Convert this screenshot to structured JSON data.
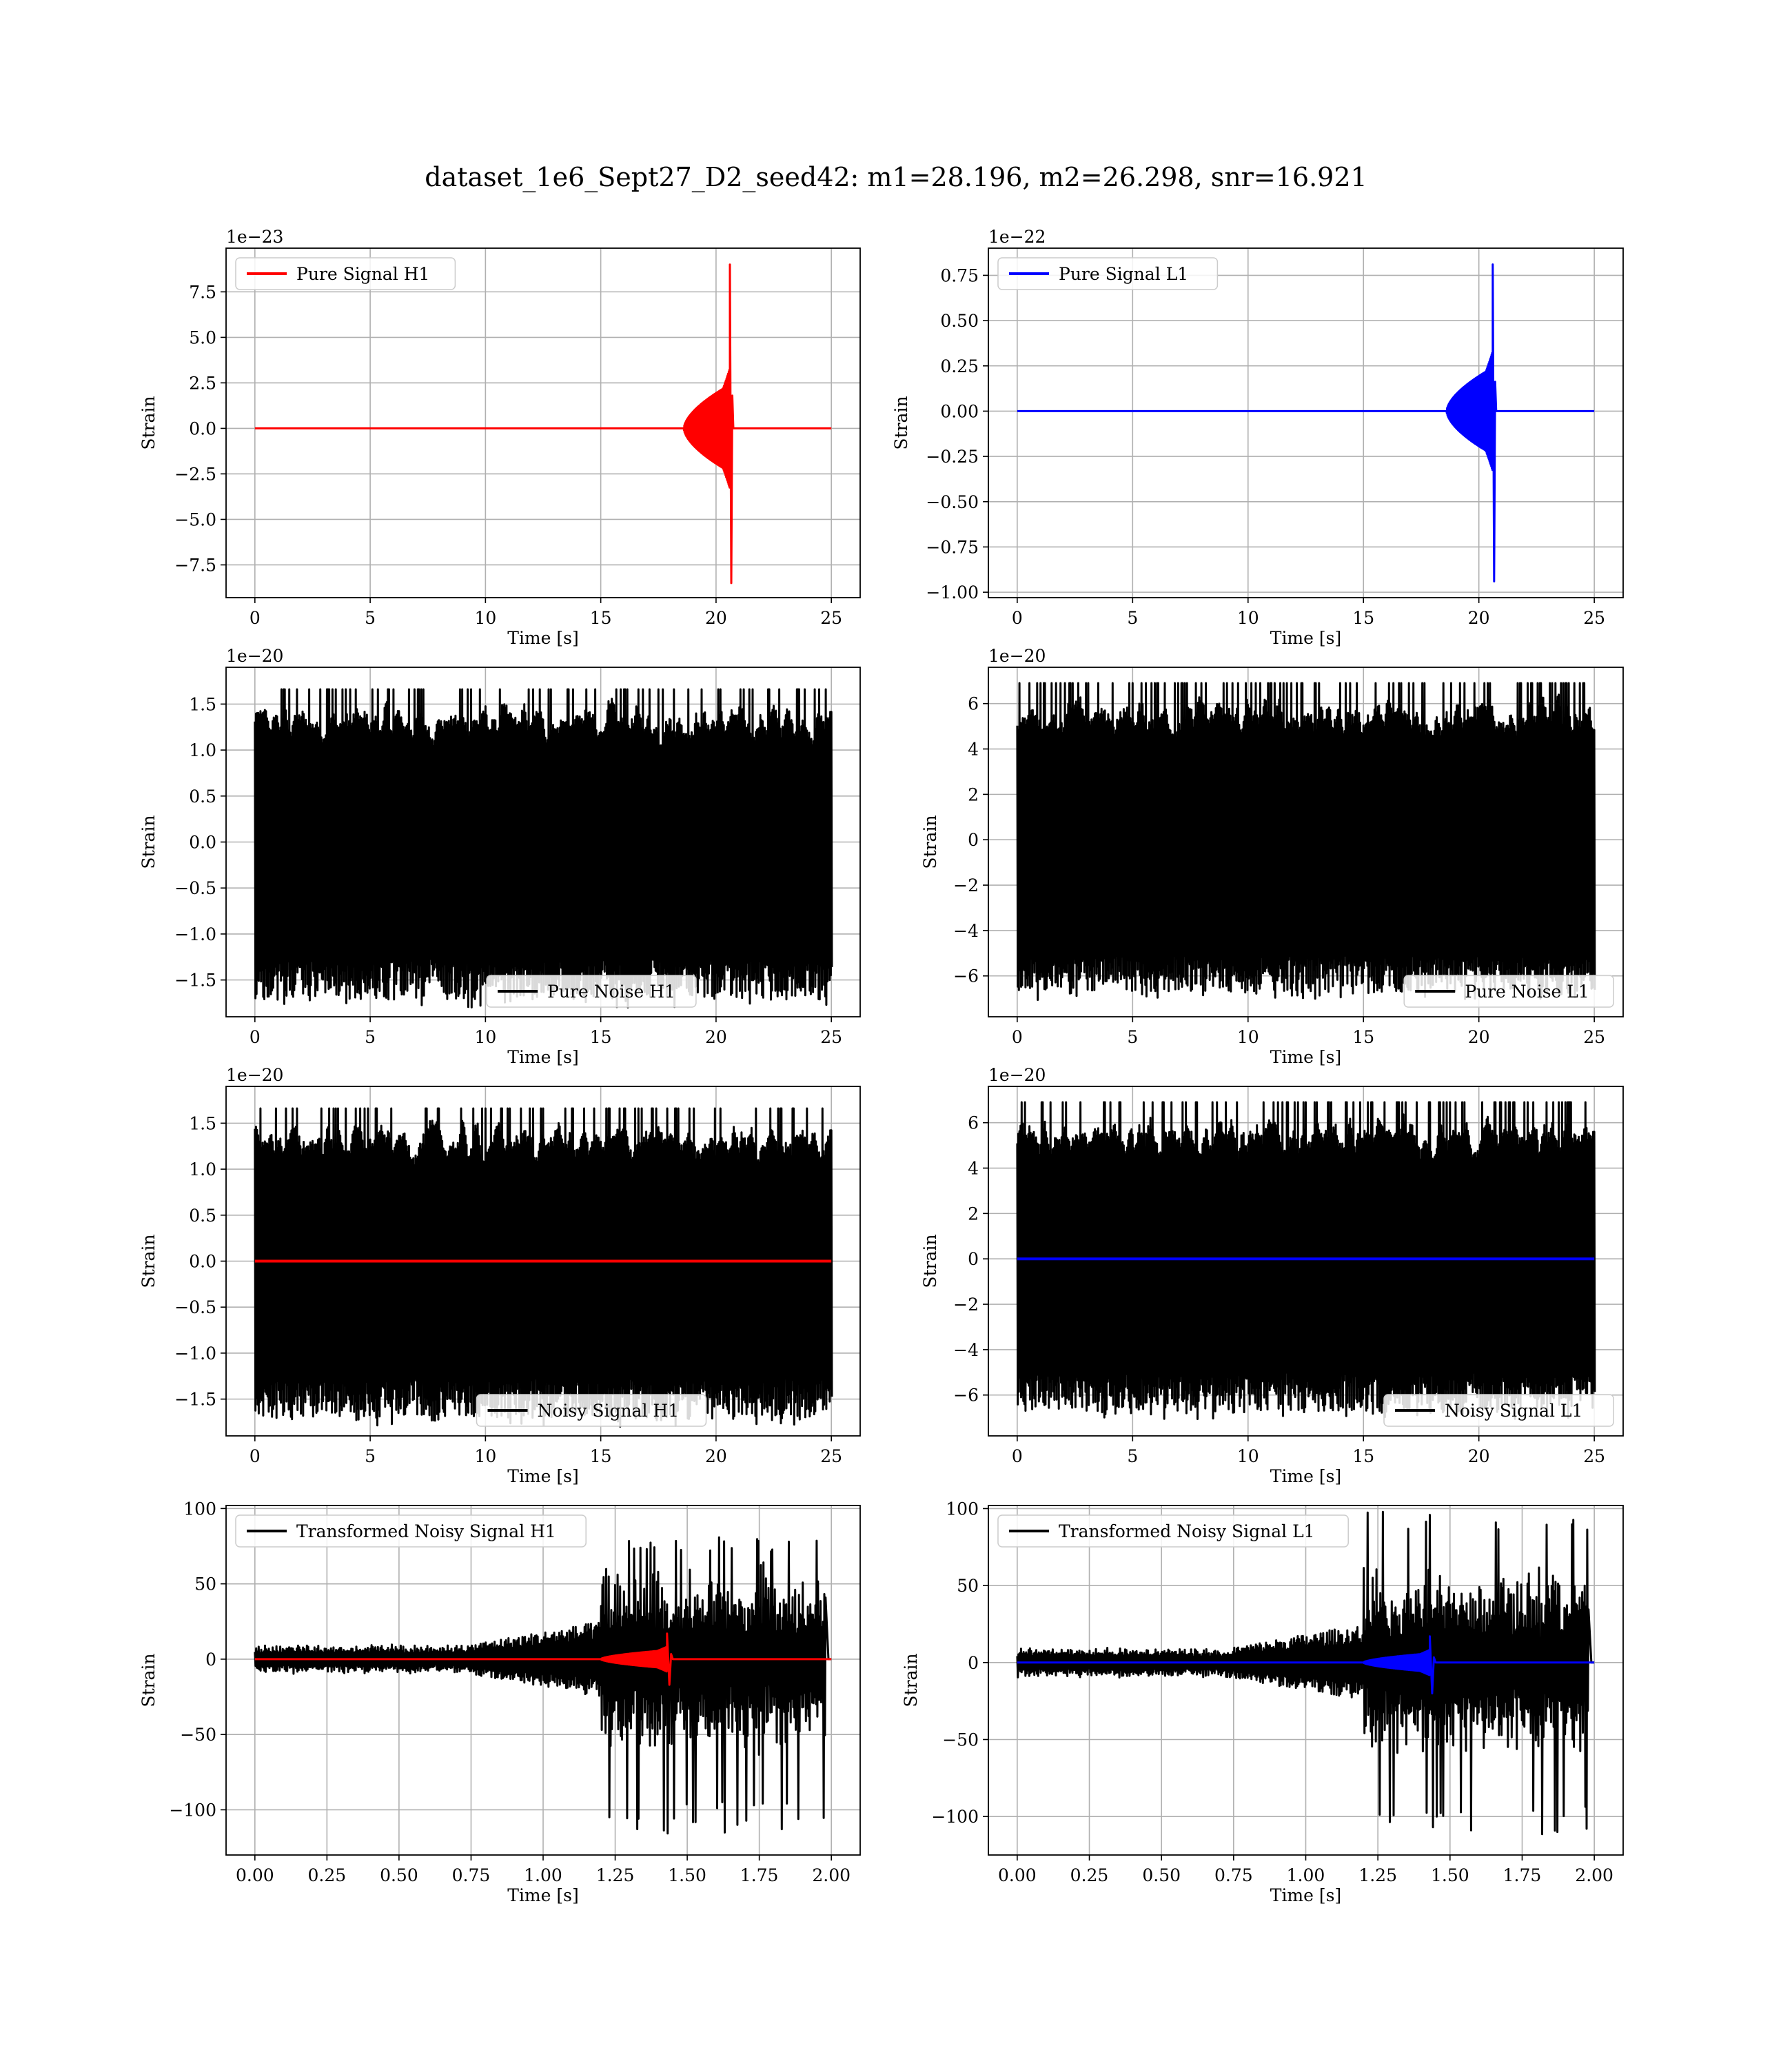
{
  "figure_title": "dataset_1e6_Sept27_D2_seed42: m1=28.196, m2=26.298, snr=16.921",
  "colors": {
    "h1_signal": "#ff0000",
    "l1_signal": "#0000ff",
    "noise": "#000000",
    "grid": "#b0b0b0"
  },
  "chart_data": [
    {
      "id": "pure-signal-h1",
      "type": "line",
      "xlabel": "Time [s]",
      "ylabel": "Strain",
      "offset_text": "1e−23",
      "xlim": [
        -1.25,
        26.25
      ],
      "ylim": [
        -9.3,
        9.9
      ],
      "xticks": [
        0,
        5,
        10,
        15,
        20,
        25
      ],
      "xtick_labels": [
        "0",
        "5",
        "10",
        "15",
        "20",
        "25"
      ],
      "yticks": [
        -7.5,
        -5.0,
        -2.5,
        0.0,
        2.5,
        5.0,
        7.5
      ],
      "ytick_labels": [
        "−7.5",
        "−5.0",
        "−2.5",
        "0.0",
        "2.5",
        "5.0",
        "7.5"
      ],
      "legend_position": "upper left",
      "series": [
        {
          "name": "Pure Signal H1",
          "color": "#ff0000",
          "kind": "chirp",
          "x_range": [
            0,
            25
          ],
          "merger_time": 20.6,
          "amplitude_before_merger": 2.4,
          "peak_max": 9.0,
          "peak_min": -8.5,
          "ringdown_end": 20.75,
          "value_after_merger": 0.0
        }
      ]
    },
    {
      "id": "pure-signal-l1",
      "type": "line",
      "xlabel": "Time [s]",
      "ylabel": "Strain",
      "offset_text": "1e−22",
      "xlim": [
        -1.25,
        26.25
      ],
      "ylim": [
        -1.03,
        0.9
      ],
      "xticks": [
        0,
        5,
        10,
        15,
        20,
        25
      ],
      "xtick_labels": [
        "0",
        "5",
        "10",
        "15",
        "20",
        "25"
      ],
      "yticks": [
        -1.0,
        -0.75,
        -0.5,
        -0.25,
        0.0,
        0.25,
        0.5,
        0.75
      ],
      "ytick_labels": [
        "−1.00",
        "−0.75",
        "−0.50",
        "−0.25",
        "0.00",
        "0.25",
        "0.50",
        "0.75"
      ],
      "legend_position": "upper left",
      "series": [
        {
          "name": "Pure Signal L1",
          "color": "#0000ff",
          "kind": "chirp",
          "x_range": [
            0,
            25
          ],
          "merger_time": 20.6,
          "amplitude_before_merger": 0.24,
          "peak_max": 0.81,
          "peak_min": -0.94,
          "ringdown_end": 20.75,
          "value_after_merger": 0.0
        }
      ]
    },
    {
      "id": "pure-noise-h1",
      "type": "line",
      "xlabel": "Time [s]",
      "ylabel": "Strain",
      "offset_text": "1e−20",
      "xlim": [
        -1.25,
        26.25
      ],
      "ylim": [
        -1.9,
        1.9
      ],
      "xticks": [
        0,
        5,
        10,
        15,
        20,
        25
      ],
      "xtick_labels": [
        "0",
        "5",
        "10",
        "15",
        "20",
        "25"
      ],
      "yticks": [
        -1.5,
        -1.0,
        -0.5,
        0.0,
        0.5,
        1.0,
        1.5
      ],
      "ytick_labels": [
        "−1.5",
        "−1.0",
        "−0.5",
        "0.0",
        "0.5",
        "1.0",
        "1.5"
      ],
      "legend_position": "lower center",
      "series": [
        {
          "name": "Pure Noise H1",
          "color": "#000000",
          "kind": "noise",
          "x_range": [
            0,
            25
          ],
          "envelope_max": 1.66,
          "envelope_min": -1.8,
          "envelope_typical": 1.1
        }
      ]
    },
    {
      "id": "pure-noise-l1",
      "type": "line",
      "xlabel": "Time [s]",
      "ylabel": "Strain",
      "offset_text": "1e−20",
      "xlim": [
        -1.25,
        26.25
      ],
      "ylim": [
        -7.8,
        7.6
      ],
      "xticks": [
        0,
        5,
        10,
        15,
        20,
        25
      ],
      "xtick_labels": [
        "0",
        "5",
        "10",
        "15",
        "20",
        "25"
      ],
      "yticks": [
        -6,
        -4,
        -2,
        0,
        2,
        4,
        6
      ],
      "ytick_labels": [
        "−6",
        "−4",
        "−2",
        "0",
        "2",
        "4",
        "6"
      ],
      "legend_position": "lower right",
      "series": [
        {
          "name": "Pure Noise L1",
          "color": "#000000",
          "kind": "noise",
          "x_range": [
            0,
            25
          ],
          "envelope_max": 6.9,
          "envelope_min": -7.1,
          "envelope_typical": 4.2
        }
      ]
    },
    {
      "id": "noisy-signal-h1",
      "type": "line",
      "xlabel": "Time [s]",
      "ylabel": "Strain",
      "offset_text": "1e−20",
      "xlim": [
        -1.25,
        26.25
      ],
      "ylim": [
        -1.9,
        1.9
      ],
      "xticks": [
        0,
        5,
        10,
        15,
        20,
        25
      ],
      "xtick_labels": [
        "0",
        "5",
        "10",
        "15",
        "20",
        "25"
      ],
      "yticks": [
        -1.5,
        -1.0,
        -0.5,
        0.0,
        0.5,
        1.0,
        1.5
      ],
      "ytick_labels": [
        "−1.5",
        "−1.0",
        "−0.5",
        "0.0",
        "0.5",
        "1.0",
        "1.5"
      ],
      "legend_position": "lower center",
      "series": [
        {
          "name": "Noisy Signal H1",
          "color": "#000000",
          "kind": "noise",
          "x_range": [
            0,
            25
          ],
          "envelope_max": 1.66,
          "envelope_min": -1.8,
          "envelope_typical": 1.1
        },
        {
          "name": "",
          "color": "#ff0000",
          "kind": "flat",
          "x_range": [
            0,
            25
          ],
          "value": 0.0
        }
      ]
    },
    {
      "id": "noisy-signal-l1",
      "type": "line",
      "xlabel": "Time [s]",
      "ylabel": "Strain",
      "offset_text": "1e−20",
      "xlim": [
        -1.25,
        26.25
      ],
      "ylim": [
        -7.8,
        7.6
      ],
      "xticks": [
        0,
        5,
        10,
        15,
        20,
        25
      ],
      "xtick_labels": [
        "0",
        "5",
        "10",
        "15",
        "20",
        "25"
      ],
      "yticks": [
        -6,
        -4,
        -2,
        0,
        2,
        4,
        6
      ],
      "ytick_labels": [
        "−6",
        "−4",
        "−2",
        "0",
        "2",
        "4",
        "6"
      ],
      "legend_position": "lower right",
      "series": [
        {
          "name": "Noisy Signal L1",
          "color": "#000000",
          "kind": "noise",
          "x_range": [
            0,
            25
          ],
          "envelope_max": 6.9,
          "envelope_min": -7.1,
          "envelope_typical": 4.2
        },
        {
          "name": "",
          "color": "#0000ff",
          "kind": "flat",
          "x_range": [
            0,
            25
          ],
          "value": 0.0
        }
      ]
    },
    {
      "id": "transformed-noisy-signal-h1",
      "type": "line",
      "xlabel": "Time [s]",
      "ylabel": "Strain",
      "offset_text": "",
      "xlim": [
        -0.1,
        2.1
      ],
      "ylim": [
        -130,
        102
      ],
      "xticks": [
        0,
        0.25,
        0.5,
        0.75,
        1.0,
        1.25,
        1.5,
        1.75,
        2.0
      ],
      "xtick_labels": [
        "0.00",
        "0.25",
        "0.50",
        "0.75",
        "1.00",
        "1.25",
        "1.50",
        "1.75",
        "2.00"
      ],
      "yticks": [
        -100,
        -50,
        0,
        50,
        100
      ],
      "ytick_labels": [
        "−100",
        "−50",
        "0",
        "50",
        "100"
      ],
      "legend_position": "upper left",
      "series": [
        {
          "name": "Transformed Noisy Signal H1",
          "color": "#000000",
          "kind": "whitened",
          "x_range": [
            0,
            2.0
          ],
          "low_amplitude": 10,
          "ramp_start": 0.75,
          "burst_start": 1.2,
          "burst_amplitude": 65,
          "peak_max": 82,
          "peak_min": -118,
          "end_time": 1.98
        },
        {
          "name": "",
          "color": "#ff0000",
          "kind": "chirp",
          "x_range": [
            0,
            2.0
          ],
          "merger_time": 1.43,
          "amplitude_before_merger": 6,
          "chirp_start": 1.2,
          "peak_max": 17,
          "peak_min": -17,
          "ringdown_end": 1.45,
          "value_after_merger": 0.0
        }
      ]
    },
    {
      "id": "transformed-noisy-signal-l1",
      "type": "line",
      "xlabel": "Time [s]",
      "ylabel": "Strain",
      "offset_text": "",
      "xlim": [
        -0.1,
        2.1
      ],
      "ylim": [
        -125,
        102
      ],
      "xticks": [
        0,
        0.25,
        0.5,
        0.75,
        1.0,
        1.25,
        1.5,
        1.75,
        2.0
      ],
      "xtick_labels": [
        "0.00",
        "0.25",
        "0.50",
        "0.75",
        "1.00",
        "1.25",
        "1.50",
        "1.75",
        "2.00"
      ],
      "yticks": [
        -100,
        -50,
        0,
        50,
        100
      ],
      "ytick_labels": [
        "−100",
        "−50",
        "0",
        "50",
        "100"
      ],
      "legend_position": "upper left",
      "series": [
        {
          "name": "Transformed Noisy Signal L1",
          "color": "#000000",
          "kind": "whitened",
          "x_range": [
            0,
            2.0
          ],
          "low_amplitude": 10,
          "ramp_start": 0.75,
          "burst_start": 1.2,
          "burst_amplitude": 65,
          "peak_max": 100,
          "peak_min": -113,
          "end_time": 1.98
        },
        {
          "name": "",
          "color": "#0000ff",
          "kind": "chirp",
          "x_range": [
            0,
            2.0
          ],
          "merger_time": 1.43,
          "amplitude_before_merger": 6,
          "chirp_start": 1.2,
          "peak_max": 17,
          "peak_min": -20,
          "ringdown_end": 1.45,
          "value_after_merger": 0.0
        }
      ]
    }
  ]
}
